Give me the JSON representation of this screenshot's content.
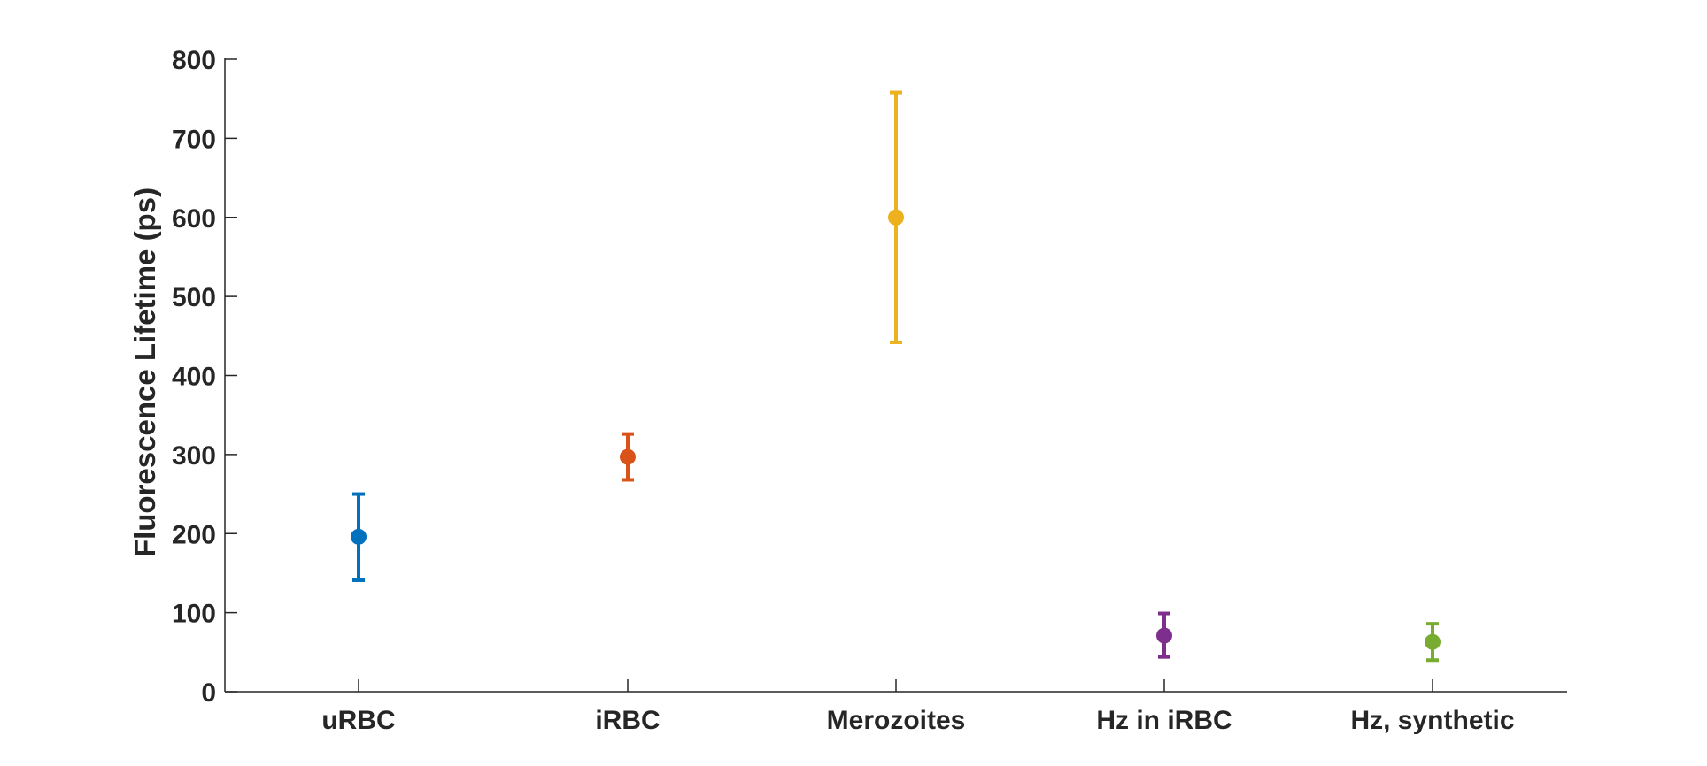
{
  "chart_data": {
    "type": "scatter",
    "title": "",
    "xlabel": "",
    "ylabel": "Fluorescence Lifetime (ps)",
    "ylim": [
      0,
      800
    ],
    "yticks": [
      0,
      100,
      200,
      300,
      400,
      500,
      600,
      700,
      800
    ],
    "grid": false,
    "categories": [
      "uRBC",
      "iRBC",
      "Merozoites",
      "Hz in iRBC",
      "Hz, synthetic"
    ],
    "points": [
      {
        "category": "uRBC",
        "value": 196,
        "error_low": 141,
        "error_high": 250,
        "color": "#0072BD"
      },
      {
        "category": "iRBC",
        "value": 297,
        "error_low": 268,
        "error_high": 326,
        "color": "#D95319"
      },
      {
        "category": "Merozoites",
        "value": 600,
        "error_low": 442,
        "error_high": 758,
        "color": "#EDB120"
      },
      {
        "category": "Hz in iRBC",
        "value": 71,
        "error_low": 44,
        "error_high": 99,
        "color": "#7E2F8E"
      },
      {
        "category": "Hz, synthetic",
        "value": 63,
        "error_low": 40,
        "error_high": 86,
        "color": "#77AC30"
      }
    ]
  }
}
